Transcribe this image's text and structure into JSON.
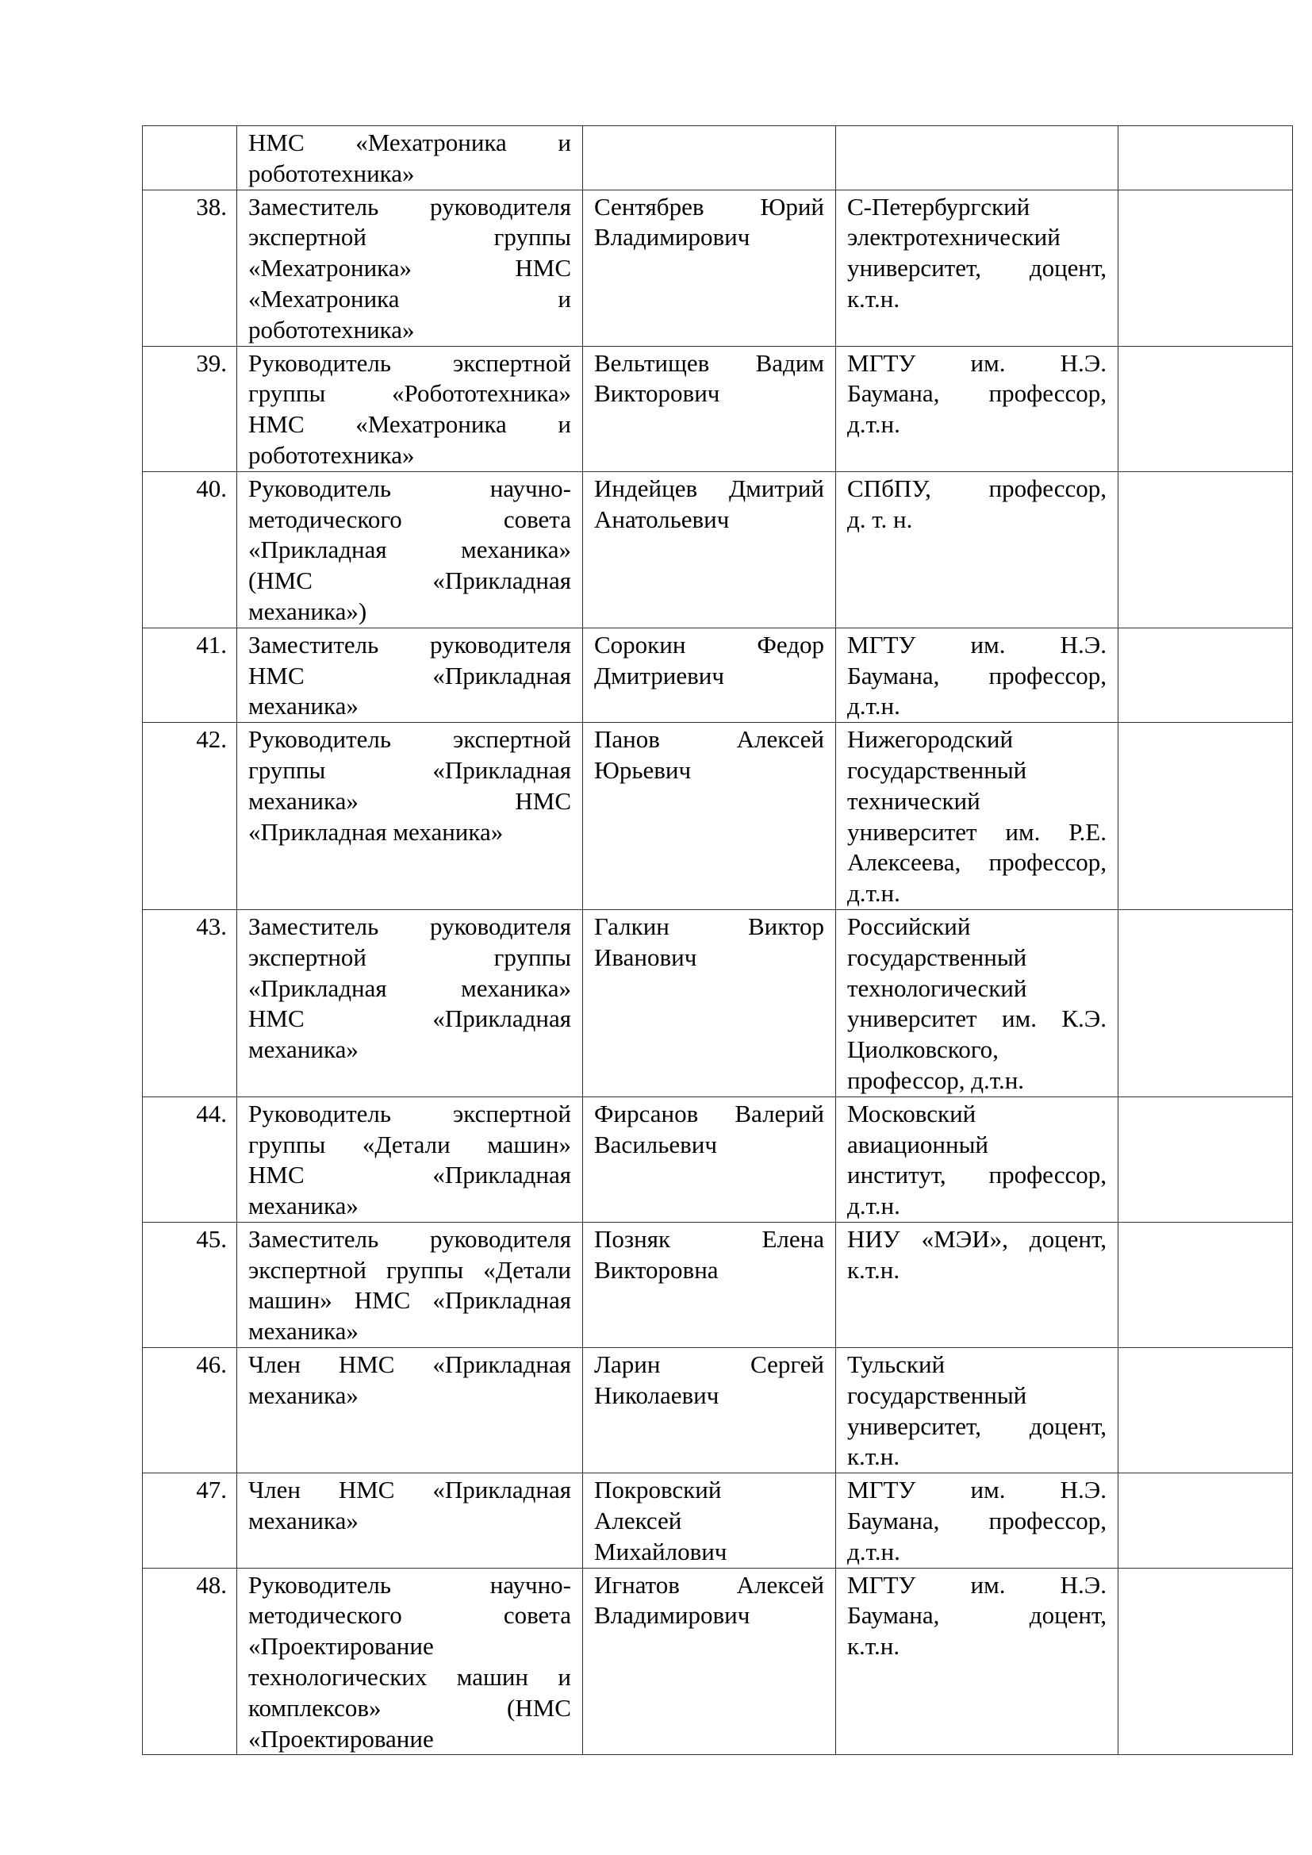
{
  "rows": [
    {
      "num": "",
      "role": [
        "НМС «Мехатроника и",
        "робототехника»"
      ],
      "name": [],
      "org": []
    },
    {
      "num": "38.",
      "role": [
        "Заместитель руководителя",
        "экспертной группы",
        "«Мехатроника» НМС",
        "«Мехатроника и",
        "робототехника»"
      ],
      "name": [
        "Сентябрев Юрий",
        "Владимирович"
      ],
      "org": [
        "С-Петербургский",
        "электротехнический",
        "университет, доцент,",
        "к.т.н."
      ]
    },
    {
      "num": "39.",
      "role": [
        "Руководитель экспертной",
        "группы «Робототехника»",
        "НМС «Мехатроника и",
        "робототехника»"
      ],
      "name": [
        "Вельтищев Вадим",
        "Викторович"
      ],
      "org": [
        "МГТУ им. Н.Э.",
        "Баумана, профессор,",
        "д.т.н."
      ]
    },
    {
      "num": "40.",
      "role": [
        "Руководитель научно-",
        "методического совета",
        "«Прикладная механика»",
        "(НМС «Прикладная",
        "механика»)"
      ],
      "name": [
        "Индейцев Дмитрий",
        "Анатольевич"
      ],
      "org": [
        "СПбПУ, профессор,",
        "д. т. н."
      ]
    },
    {
      "num": "41.",
      "role": [
        "Заместитель руководителя",
        "НМС «Прикладная",
        "механика»"
      ],
      "name": [
        "Сорокин Федор",
        "Дмитриевич"
      ],
      "org": [
        "МГТУ им. Н.Э.",
        "Баумана, профессор,",
        "д.т.н."
      ]
    },
    {
      "num": "42.",
      "role": [
        "Руководитель экспертной",
        "группы «Прикладная",
        "механика» НМС",
        "«Прикладная механика»"
      ],
      "name": [
        "Панов Алексей",
        "Юрьевич"
      ],
      "org": [
        "Нижегородский",
        "государственный",
        "технический",
        "университет им. Р.Е.",
        "Алексеева, профессор,",
        "д.т.н."
      ]
    },
    {
      "num": "43.",
      "role": [
        "Заместитель руководителя",
        "экспертной группы",
        "«Прикладная механика»",
        "НМС «Прикладная",
        "механика»"
      ],
      "name": [
        "Галкин Виктор",
        "Иванович"
      ],
      "org": [
        "Российский",
        "государственный",
        "технологический",
        "университет им. К.Э.",
        "Циолковского,",
        "профессор, д.т.н."
      ]
    },
    {
      "num": "44.",
      "role": [
        "Руководитель экспертной",
        "группы «Детали машин»",
        "НМС «Прикладная",
        "механика»"
      ],
      "name": [
        "Фирсанов Валерий",
        "Васильевич"
      ],
      "org": [
        "Московский",
        "авиационный",
        "институт, профессор,",
        "д.т.н."
      ]
    },
    {
      "num": "45.",
      "role": [
        "Заместитель руководителя",
        "экспертной группы «Детали",
        "машин» НМС «Прикладная",
        "механика»"
      ],
      "name": [
        "Позняк Елена",
        "Викторовна"
      ],
      "org": [
        "НИУ «МЭИ», доцент,",
        "к.т.н."
      ]
    },
    {
      "num": "46.",
      "role": [
        "Член НМС «Прикладная",
        "механика»"
      ],
      "name": [
        "Ларин Сергей",
        "Николаевич"
      ],
      "org": [
        "Тульский",
        "государственный",
        "университет, доцент,",
        "к.т.н."
      ]
    },
    {
      "num": "47.",
      "role": [
        "Член НМС «Прикладная",
        "механика»"
      ],
      "name": [
        "Покровский",
        "Алексей",
        "Михайлович"
      ],
      "org": [
        "МГТУ им. Н.Э.",
        "Баумана, профессор,",
        "д.т.н."
      ]
    },
    {
      "num": "48.",
      "role": [
        "Руководитель научно-",
        "методического совета",
        "«Проектирование",
        "технологических машин и",
        "комплексов» (НМС",
        "«Проектирование"
      ],
      "name": [
        "Игнатов Алексей",
        "Владимирович"
      ],
      "org": [
        "МГТУ им. Н.Э.",
        "Баумана, доцент,",
        "к.т.н."
      ]
    }
  ]
}
